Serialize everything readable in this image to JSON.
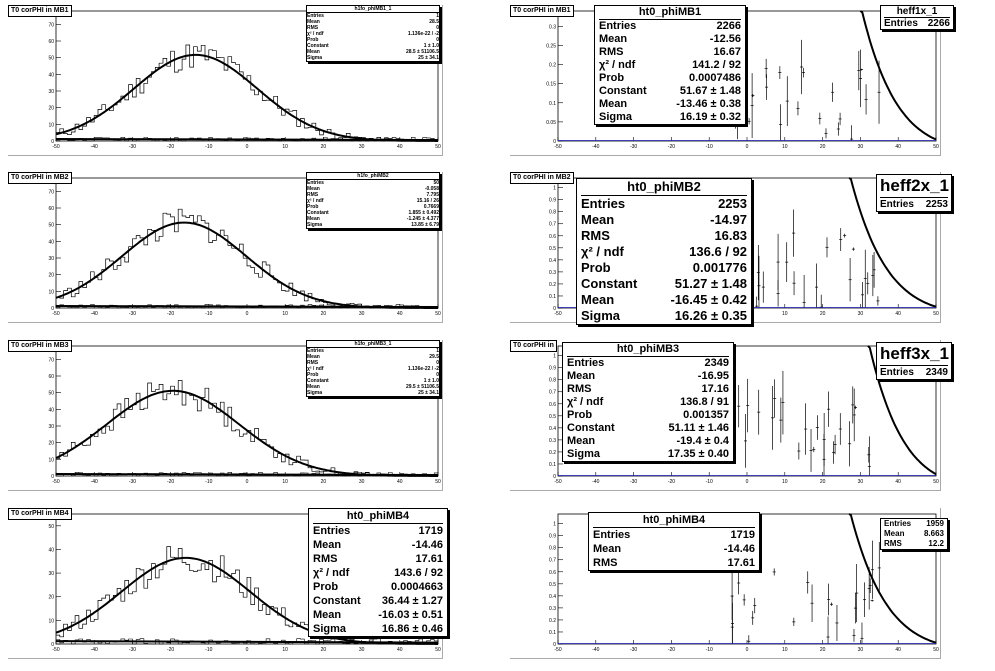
{
  "chart_data": [
    {
      "id": "pad1",
      "type": "bar",
      "title": "T0 corPHI in MB1",
      "xlim": [
        -50,
        50
      ],
      "ylim": [
        0,
        78
      ],
      "xticks": [
        -50,
        -40,
        -30,
        -20,
        -10,
        0,
        10,
        20,
        30,
        40,
        50
      ],
      "yticks": [
        0,
        10,
        20,
        30,
        40,
        50,
        60,
        70
      ],
      "fit": {
        "constant": 51.67,
        "mean": -13.46,
        "sigma": 16.19
      },
      "hist_seed": 11,
      "stats": {
        "name": "h1fo_phiMB1_1",
        "rows": [
          {
            "label": "Entries",
            "value": "1"
          },
          {
            "label": "Mean",
            "value": "28.5"
          },
          {
            "label": "RMS",
            "value": "0"
          },
          {
            "label": "χ² / ndf",
            "value": "1.136e-22 / -2"
          },
          {
            "label": "Prob",
            "value": "0"
          },
          {
            "label": "Constant",
            "value": "1 ± 1.0"
          },
          {
            "label": "Mean",
            "value": "28.5 ± 51106.5"
          },
          {
            "label": "Sigma",
            "value": "25 ± 34.1"
          }
        ]
      }
    },
    {
      "id": "pad2",
      "type": "scatter",
      "title": "T0 corPHI in MB1",
      "xlim": [
        -50,
        50
      ],
      "ylim": [
        0,
        0.34
      ],
      "xticks": [
        -50,
        -40,
        -30,
        -20,
        -10,
        0,
        10,
        20,
        30,
        40,
        50
      ],
      "yticks": [
        0,
        0.05,
        0.1,
        0.15,
        0.2,
        0.25,
        0.3
      ],
      "eff_start": 30,
      "scatter_seed": 21,
      "stats": {
        "name": "ht0_phiMB1",
        "rows": [
          {
            "label": "Entries",
            "value": "2266"
          },
          {
            "label": "Mean",
            "value": "-12.56"
          },
          {
            "label": "RMS",
            "value": "16.67"
          },
          {
            "label": "χ² / ndf",
            "value": "141.2 / 92"
          },
          {
            "label": "Prob",
            "value": "0.0007486"
          },
          {
            "label": "Constant",
            "value": "51.67 ± 1.48"
          },
          {
            "label": "Mean",
            "value": "-13.46 ± 0.38"
          },
          {
            "label": "Sigma",
            "value": "16.19 ± 0.32"
          }
        ]
      },
      "stats2": {
        "name": "heff1x_1",
        "rows": [
          {
            "label": "Entries",
            "value": "2266"
          }
        ]
      }
    },
    {
      "id": "pad3",
      "type": "bar",
      "title": "T0 corPHI in MB2",
      "xlim": [
        -50,
        50
      ],
      "ylim": [
        0,
        78
      ],
      "xticks": [
        -50,
        -40,
        -30,
        -20,
        -10,
        0,
        10,
        20,
        30,
        40,
        50
      ],
      "yticks": [
        0,
        10,
        20,
        30,
        40,
        50,
        60,
        70
      ],
      "fit": {
        "constant": 51.27,
        "mean": -16.45,
        "sigma": 16.26
      },
      "hist_seed": 33,
      "stats": {
        "name": "h1fo_phiMB2",
        "rows": [
          {
            "label": "Entries",
            "value": "50"
          },
          {
            "label": "Mean",
            "value": "-0.058"
          },
          {
            "label": "RMS",
            "value": "7.795"
          },
          {
            "label": "χ² / ndf",
            "value": "15.16 / 26"
          },
          {
            "label": "Prob",
            "value": "0.7669"
          },
          {
            "label": "Constant",
            "value": "1.855 ± 0.492"
          },
          {
            "label": "Mean",
            "value": "-1.245 ± 4.377"
          },
          {
            "label": "Sigma",
            "value": "13.85 ± 6.79"
          }
        ]
      }
    },
    {
      "id": "pad4",
      "type": "scatter",
      "title": "T0 corPHI in MB2",
      "xlim": [
        -50,
        50
      ],
      "ylim": [
        0,
        1.08
      ],
      "xticks": [
        -50,
        -40,
        -30,
        -20,
        -10,
        0,
        10,
        20,
        30,
        40,
        50
      ],
      "yticks": [
        0,
        0.1,
        0.2,
        0.3,
        0.4,
        0.5,
        0.6,
        0.7,
        0.8,
        0.9,
        1
      ],
      "eff_start": 27,
      "scatter_seed": 44,
      "stats": {
        "name": "ht0_phiMB2",
        "rows": [
          {
            "label": "Entries",
            "value": "2253"
          },
          {
            "label": "Mean",
            "value": "-14.97"
          },
          {
            "label": "RMS",
            "value": "16.83"
          },
          {
            "label": "χ² / ndf",
            "value": "136.6 / 92"
          },
          {
            "label": "Prob",
            "value": "0.001776"
          },
          {
            "label": "Constant",
            "value": "51.27 ± 1.48"
          },
          {
            "label": "Mean",
            "value": "-16.45 ± 0.42"
          },
          {
            "label": "Sigma",
            "value": "16.26 ± 0.35"
          }
        ]
      },
      "stats2": {
        "name": "heff2x_1",
        "rows": [
          {
            "label": "Entries",
            "value": "2253"
          }
        ]
      }
    },
    {
      "id": "pad5",
      "type": "bar",
      "title": "T0 corPHI in MB3",
      "xlim": [
        -50,
        50
      ],
      "ylim": [
        0,
        78
      ],
      "xticks": [
        -50,
        -40,
        -30,
        -20,
        -10,
        0,
        10,
        20,
        30,
        40,
        50
      ],
      "yticks": [
        0,
        10,
        20,
        30,
        40,
        50,
        60,
        70
      ],
      "fit": {
        "constant": 51.11,
        "mean": -19.4,
        "sigma": 17.35
      },
      "hist_seed": 55,
      "stats": {
        "name": "h1fo_phiMB3_1",
        "rows": [
          {
            "label": "Entries",
            "value": "1"
          },
          {
            "label": "Mean",
            "value": "29.5"
          },
          {
            "label": "RMS",
            "value": "0"
          },
          {
            "label": "χ² / ndf",
            "value": "1.136e-22 / -2"
          },
          {
            "label": "Prob",
            "value": "0"
          },
          {
            "label": "Constant",
            "value": "1 ± 1.0"
          },
          {
            "label": "Mean",
            "value": "29.5 ± 51106.5"
          },
          {
            "label": "Sigma",
            "value": "25 ± 34.1"
          }
        ]
      }
    },
    {
      "id": "pad6",
      "type": "scatter",
      "title": "T0 corPHI in",
      "xlim": [
        -50,
        50
      ],
      "ylim": [
        0,
        1.08
      ],
      "xticks": [
        -50,
        -40,
        -30,
        -20,
        -10,
        0,
        10,
        20,
        30,
        40,
        50
      ],
      "yticks": [
        0,
        0.1,
        0.2,
        0.3,
        0.4,
        0.5,
        0.6,
        0.7,
        0.8,
        0.9,
        1
      ],
      "eff_start": 32,
      "scatter_seed": 66,
      "stats": {
        "name": "ht0_phiMB3",
        "rows": [
          {
            "label": "Entries",
            "value": "2349"
          },
          {
            "label": "Mean",
            "value": "-16.95"
          },
          {
            "label": "RMS",
            "value": "17.16"
          },
          {
            "label": "χ² / ndf",
            "value": "136.8 / 91"
          },
          {
            "label": "Prob",
            "value": "0.001357"
          },
          {
            "label": "Constant",
            "value": "51.11 ± 1.46"
          },
          {
            "label": "Mean",
            "value": "-19.4 ± 0.4"
          },
          {
            "label": "Sigma",
            "value": "17.35 ± 0.40"
          }
        ]
      },
      "stats2": {
        "name": "heff3x_1",
        "rows": [
          {
            "label": "Entries",
            "value": "2349"
          }
        ]
      }
    },
    {
      "id": "pad7",
      "type": "bar",
      "title": "T0 corPHI in MB4",
      "xlim": [
        -50,
        50
      ],
      "ylim": [
        0,
        55
      ],
      "xticks": [
        -50,
        -40,
        -30,
        -20,
        -10,
        0,
        10,
        20,
        30,
        40,
        50
      ],
      "yticks": [
        0,
        10,
        20,
        30,
        40,
        50
      ],
      "fit": {
        "constant": 36.44,
        "mean": -16.03,
        "sigma": 16.86
      },
      "hist_seed": 77,
      "stats": {
        "name": "ht0_phiMB4",
        "rows": [
          {
            "label": "Entries",
            "value": "1719"
          },
          {
            "label": "Mean",
            "value": "-14.46"
          },
          {
            "label": "RMS",
            "value": "17.61"
          },
          {
            "label": "χ² / ndf",
            "value": "143.6 / 92"
          },
          {
            "label": "Prob",
            "value": "0.0004663"
          },
          {
            "label": "Constant",
            "value": "36.44 ± 1.27"
          },
          {
            "label": "Mean",
            "value": "-16.03 ± 0.51"
          },
          {
            "label": "Sigma",
            "value": "16.86 ± 0.46"
          }
        ]
      }
    },
    {
      "id": "pad8",
      "type": "scatter",
      "title": "",
      "xlim": [
        -50,
        50
      ],
      "ylim": [
        0,
        1.08
      ],
      "xticks": [
        -50,
        -40,
        -30,
        -20,
        -10,
        0,
        10,
        20,
        30,
        40,
        50
      ],
      "yticks": [
        0,
        0.1,
        0.2,
        0.3,
        0.4,
        0.5,
        0.6,
        0.7,
        0.8,
        0.9,
        1
      ],
      "eff_start": 27,
      "scatter_seed": 88,
      "stats": {
        "name": "ht0_phiMB4",
        "rows": [
          {
            "label": "Entries",
            "value": "1719"
          },
          {
            "label": "Mean",
            "value": "-14.46"
          },
          {
            "label": "RMS",
            "value": "17.61"
          }
        ]
      },
      "stats2": {
        "name": "",
        "rows": [
          {
            "label": "Entries",
            "value": "1959"
          },
          {
            "label": "Mean",
            "value": "8.663"
          },
          {
            "label": "RMS",
            "value": "12.2"
          }
        ]
      }
    }
  ]
}
